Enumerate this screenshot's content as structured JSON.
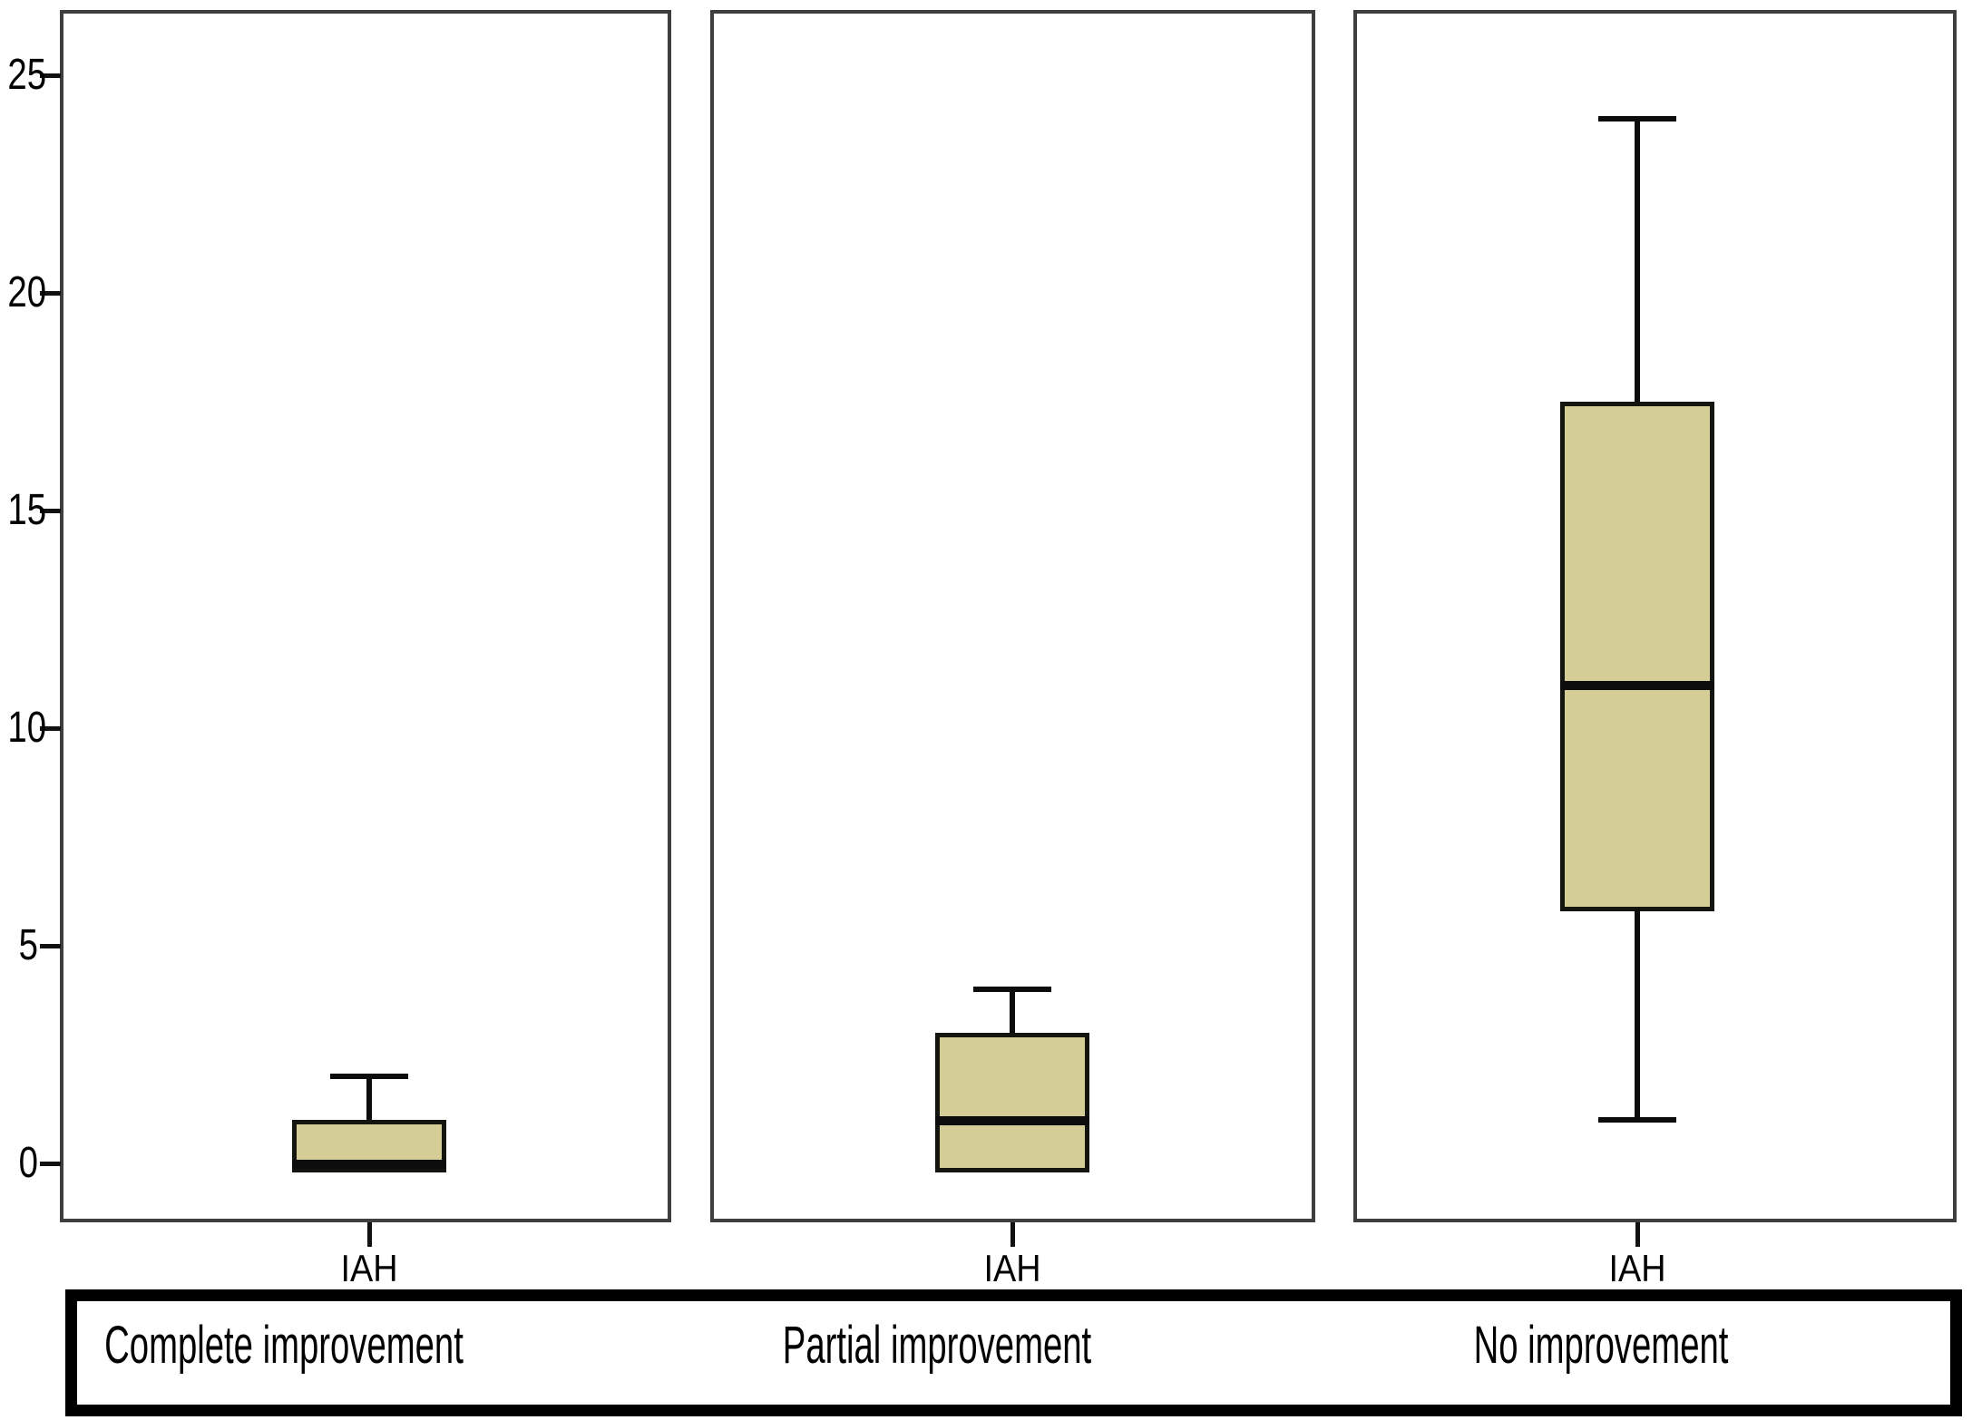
{
  "figure": {
    "background": "#ffffff",
    "x_axis_variable_label": "IAH"
  },
  "chart_data": {
    "type": "boxplot",
    "title": "",
    "xlabel": "",
    "ylabel": "",
    "layout": "three-facet-panels-shared-y-axis",
    "grid": false,
    "y_ticks": [
      0,
      5,
      10,
      15,
      20,
      25
    ],
    "ylim": [
      -1.4,
      26.5
    ],
    "groups": [
      {
        "label": "Complete improvement",
        "x_tick_label": "IAH",
        "whisker_low": null,
        "q1": 0,
        "median": 0,
        "q3": 1,
        "whisker_high": 2
      },
      {
        "label": "Partial improvement",
        "x_tick_label": "IAH",
        "whisker_low": null,
        "q1": 0,
        "median": 1,
        "q3": 3,
        "whisker_high": 4
      },
      {
        "label": "No improvement",
        "x_tick_label": "IAH",
        "whisker_low": 1,
        "q1": 6,
        "median": 11,
        "q3": 17.5,
        "whisker_high": 24
      }
    ],
    "colors": {
      "box_fill": "#d5cd96",
      "box_border": "#15150f",
      "line": "#0d0d0d",
      "panel_border": "#3e3e3e",
      "text": "#000000",
      "background": "#ffffff"
    }
  }
}
